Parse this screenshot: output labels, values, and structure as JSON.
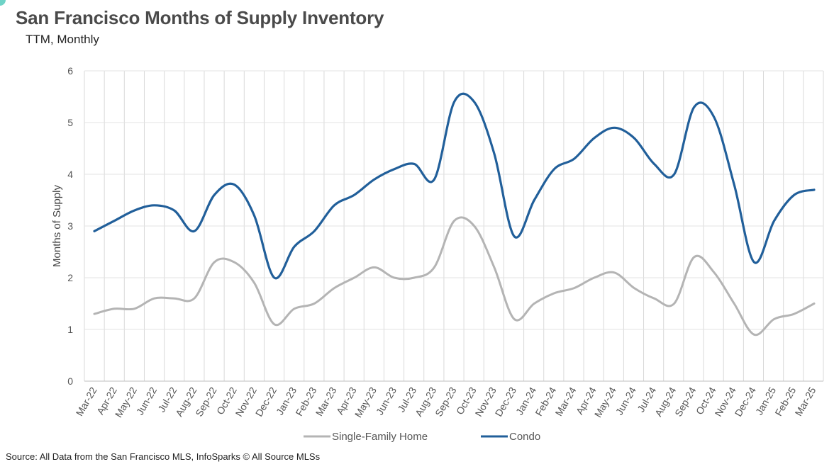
{
  "chart_data": {
    "type": "line",
    "title": "San Francisco Months of Supply Inventory",
    "subtitle": "TTM, Monthly",
    "xlabel": "",
    "ylabel": "Months of Supply",
    "ylim": [
      0,
      6
    ],
    "yticks": [
      0,
      1,
      2,
      3,
      4,
      5,
      6
    ],
    "grid": "vertical and horizontal",
    "legend_position": "bottom",
    "categories": [
      "Mar-22",
      "Apr-22",
      "May-22",
      "Jun-22",
      "Jul-22",
      "Aug-22",
      "Sep-22",
      "Oct-22",
      "Nov-22",
      "Dec-22",
      "Jan-23",
      "Feb-23",
      "Mar-23",
      "Apr-23",
      "May-23",
      "Jun-23",
      "Jul-23",
      "Aug-23",
      "Sep-23",
      "Oct-23",
      "Nov-23",
      "Dec-23",
      "Jan-24",
      "Feb-24",
      "Mar-24",
      "Apr-24",
      "May-24",
      "Jun-24",
      "Jul-24",
      "Aug-24",
      "Sep-24",
      "Oct-24",
      "Nov-24",
      "Dec-24",
      "Jan-25",
      "Feb-25",
      "Mar-25"
    ],
    "series": [
      {
        "name": "Single-Family Home",
        "color": "#b4b4b4",
        "values": [
          1.3,
          1.4,
          1.4,
          1.6,
          1.6,
          1.6,
          2.3,
          2.3,
          1.9,
          1.1,
          1.4,
          1.5,
          1.8,
          2.0,
          2.2,
          2.0,
          2.0,
          2.2,
          3.1,
          3.0,
          2.2,
          1.2,
          1.5,
          1.7,
          1.8,
          2.0,
          2.1,
          1.8,
          1.6,
          1.5,
          2.4,
          2.1,
          1.5,
          0.9,
          1.2,
          1.3,
          1.5
        ]
      },
      {
        "name": "Condo",
        "color": "#215f9a",
        "values": [
          2.9,
          3.1,
          3.3,
          3.4,
          3.3,
          2.9,
          3.6,
          3.8,
          3.2,
          2.0,
          2.6,
          2.9,
          3.4,
          3.6,
          3.9,
          4.1,
          4.2,
          3.9,
          5.4,
          5.4,
          4.4,
          2.8,
          3.5,
          4.1,
          4.3,
          4.7,
          4.9,
          4.7,
          4.2,
          4.0,
          5.3,
          5.1,
          3.8,
          2.3,
          3.1,
          3.6,
          3.7
        ]
      }
    ]
  },
  "source": "Source: All Data from the San Francisco MLS, InfoSparks © All Source MLSs"
}
